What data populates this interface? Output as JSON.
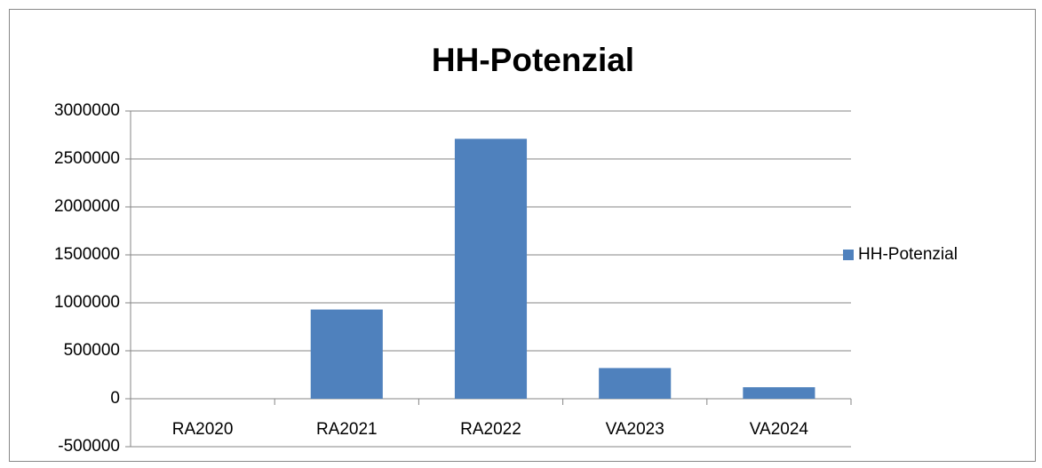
{
  "chart_data": {
    "type": "bar",
    "title": "HH-Potenzial",
    "categories": [
      "RA2020",
      "RA2021",
      "RA2022",
      "VA2023",
      "VA2024"
    ],
    "series": [
      {
        "name": "HH-Potenzial",
        "color": "#4f81bd",
        "values": [
          0,
          930000,
          2710000,
          320000,
          120000
        ]
      }
    ],
    "ylim": [
      -500000,
      3000000
    ],
    "yticks": [
      -500000,
      0,
      500000,
      1000000,
      1500000,
      2000000,
      2500000,
      3000000
    ],
    "grid": true,
    "legend": "right"
  }
}
